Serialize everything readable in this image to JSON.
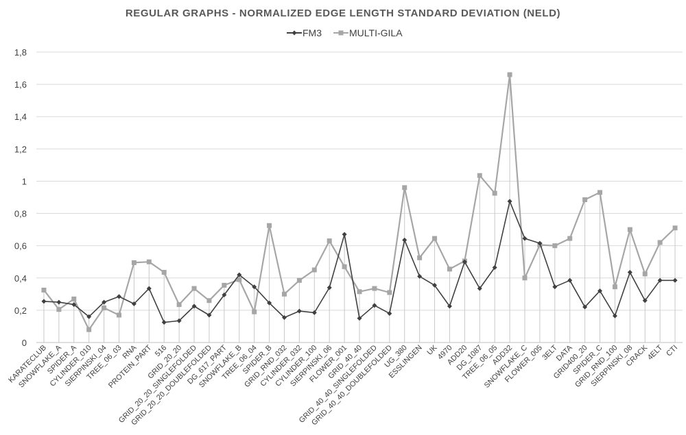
{
  "chart_data": {
    "type": "line",
    "title": "REGULAR GRAPHS - NORMALIZED EDGE LENGTH STANDARD DEVIATION (NELD)",
    "xlabel": "",
    "ylabel": "",
    "ylim": [
      0,
      1.8
    ],
    "yticks": [
      0,
      0.2,
      0.4,
      0.6,
      0.8,
      1,
      1.2,
      1.4,
      1.6,
      1.8
    ],
    "ytick_labels": [
      "0",
      "0,2",
      "0,4",
      "0,6",
      "0,8",
      "1",
      "1,2",
      "1,4",
      "1,6",
      "1,8"
    ],
    "drop_lines": true,
    "legend_position": "top-center",
    "categories": [
      "KARATECLUB",
      "SNOWFLAKE_A",
      "SPIDER_A",
      "CYLINDER_010",
      "SIERPINSKI_04",
      "TREE_06_03",
      "RNA",
      "PROTEIN_PART",
      "516",
      "GRID_20_20",
      "GRID_20_20_SINGLEFOLDED",
      "GRID_20_20_DOUBLEFOLDED",
      "DG_617_PART",
      "SNOWFLAKE_B",
      "TREE_06_04",
      "SPIDER_B",
      "GRID_RND_032",
      "CYLINDER_032",
      "CYLINDER_100",
      "SIERPINSKI_06",
      "FLOWER_001",
      "GRID_40_40",
      "GRID_40_40_SINGLEFOLDED",
      "GRID_40_40_DOUBLEFOLDED",
      "UG_380",
      "ESSLINGEN",
      "UK",
      "4970",
      "ADD20",
      "DG_1087",
      "TREE_06_05",
      "ADD32",
      "SNOWFLAKE_C",
      "FLOWER_005",
      "3ELT",
      "DATA",
      "GRID400_20",
      "SPIDER_C",
      "GRID_RND_100",
      "SIERPINSKI_08",
      "CRACK",
      "4ELT",
      "CTI"
    ],
    "series": [
      {
        "name": "FM3",
        "color": "#404040",
        "marker": "diamond",
        "values": [
          0.255,
          0.25,
          0.235,
          0.16,
          0.25,
          0.285,
          0.24,
          0.335,
          0.125,
          0.135,
          0.225,
          0.17,
          0.295,
          0.42,
          0.345,
          0.245,
          0.155,
          0.195,
          0.185,
          0.34,
          0.67,
          0.15,
          0.23,
          0.18,
          0.635,
          0.41,
          0.355,
          0.225,
          0.5,
          0.335,
          0.465,
          0.875,
          0.645,
          0.615,
          0.345,
          0.385,
          0.22,
          0.32,
          0.165,
          0.435,
          0.26,
          0.385,
          0.385
        ]
      },
      {
        "name": "MULTI-GILA",
        "color": "#a6a6a6",
        "marker": "square",
        "values": [
          0.325,
          0.205,
          0.27,
          0.08,
          0.215,
          0.17,
          0.495,
          0.5,
          0.435,
          0.235,
          0.335,
          0.26,
          0.355,
          0.39,
          0.19,
          0.725,
          0.3,
          0.385,
          0.45,
          0.63,
          0.47,
          0.315,
          0.335,
          0.31,
          0.96,
          0.525,
          0.645,
          0.455,
          0.505,
          1.035,
          0.925,
          1.66,
          0.4,
          0.605,
          0.6,
          0.645,
          0.885,
          0.93,
          0.345,
          0.7,
          0.425,
          0.62,
          0.71
        ]
      }
    ]
  }
}
